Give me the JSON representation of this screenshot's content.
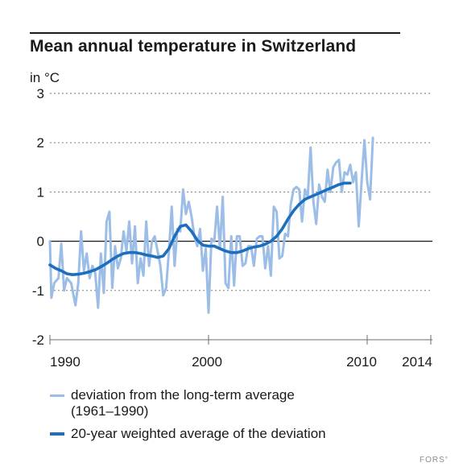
{
  "chart_data": {
    "type": "line",
    "title": "Mean annual temperature in Switzerland",
    "ylabel": "in °C",
    "ylim": [
      -2,
      3
    ],
    "xlim": [
      1988,
      2015
    ],
    "y_ticks": [
      3,
      2,
      1,
      0,
      -1,
      -2
    ],
    "y_tick_labels": [
      "3",
      "2",
      "1",
      "0",
      "-1",
      "-2"
    ],
    "x_ticks": [
      1990,
      2000,
      2010,
      2014
    ],
    "x_tick_labels": [
      "1990",
      "2000",
      "2010",
      "2014"
    ],
    "grid": true,
    "legend_position": "bottom",
    "series": [
      {
        "name": "deviation from the long-term average (1961–1990)",
        "color": "#9bbde6",
        "points": [
          [
            1988.0,
            0.0
          ],
          [
            1988.1,
            -1.15
          ],
          [
            1988.3,
            -0.85
          ],
          [
            1988.6,
            -0.75
          ],
          [
            1988.8,
            -0.05
          ],
          [
            1989.0,
            -1.0
          ],
          [
            1989.2,
            -0.75
          ],
          [
            1989.5,
            -0.85
          ],
          [
            1989.8,
            -1.3
          ],
          [
            1990.0,
            -0.85
          ],
          [
            1990.2,
            0.2
          ],
          [
            1990.4,
            -0.6
          ],
          [
            1990.6,
            -0.25
          ],
          [
            1990.8,
            -0.75
          ],
          [
            1991.0,
            -0.5
          ],
          [
            1991.2,
            -0.65
          ],
          [
            1991.4,
            -1.35
          ],
          [
            1991.6,
            -0.25
          ],
          [
            1991.8,
            -1.05
          ],
          [
            1992.0,
            0.4
          ],
          [
            1992.2,
            0.6
          ],
          [
            1992.4,
            -0.95
          ],
          [
            1992.6,
            -0.1
          ],
          [
            1992.8,
            -0.55
          ],
          [
            1993.0,
            -0.35
          ],
          [
            1993.2,
            0.2
          ],
          [
            1993.4,
            -0.2
          ],
          [
            1993.6,
            0.4
          ],
          [
            1993.8,
            -0.45
          ],
          [
            1994.0,
            0.3
          ],
          [
            1994.2,
            -0.85
          ],
          [
            1994.4,
            -0.35
          ],
          [
            1994.6,
            -0.7
          ],
          [
            1994.8,
            0.4
          ],
          [
            1995.0,
            -0.5
          ],
          [
            1995.2,
            0.0
          ],
          [
            1995.4,
            0.1
          ],
          [
            1995.6,
            -0.2
          ],
          [
            1995.8,
            -0.5
          ],
          [
            1996.0,
            -1.1
          ],
          [
            1996.2,
            -0.95
          ],
          [
            1996.4,
            -0.2
          ],
          [
            1996.6,
            0.7
          ],
          [
            1996.8,
            -0.5
          ],
          [
            1997.0,
            0.25
          ],
          [
            1997.2,
            0.2
          ],
          [
            1997.4,
            1.05
          ],
          [
            1997.6,
            0.55
          ],
          [
            1997.8,
            0.8
          ],
          [
            1998.0,
            0.5
          ],
          [
            1998.2,
            0.1
          ],
          [
            1998.4,
            -0.1
          ],
          [
            1998.6,
            0.25
          ],
          [
            1998.8,
            -0.6
          ],
          [
            1999.0,
            -0.15
          ],
          [
            1999.2,
            -1.45
          ],
          [
            1999.4,
            0.05
          ],
          [
            1999.6,
            0.0
          ],
          [
            1999.8,
            0.7
          ],
          [
            2000.0,
            -0.15
          ],
          [
            2000.2,
            0.9
          ],
          [
            2000.4,
            -0.85
          ],
          [
            2000.6,
            -0.95
          ],
          [
            2000.8,
            0.1
          ],
          [
            2001.0,
            -0.9
          ],
          [
            2001.2,
            0.1
          ],
          [
            2001.4,
            0.1
          ],
          [
            2001.6,
            -0.5
          ],
          [
            2001.8,
            -0.45
          ],
          [
            2002.0,
            -0.1
          ],
          [
            2002.2,
            -0.1
          ],
          [
            2002.4,
            -0.5
          ],
          [
            2002.6,
            0.05
          ],
          [
            2002.8,
            0.1
          ],
          [
            2003.0,
            0.1
          ],
          [
            2003.2,
            -0.55
          ],
          [
            2003.4,
            -0.1
          ],
          [
            2003.6,
            -0.7
          ],
          [
            2003.8,
            0.7
          ],
          [
            2004.0,
            0.6
          ],
          [
            2004.2,
            -0.35
          ],
          [
            2004.4,
            -0.3
          ],
          [
            2004.6,
            0.15
          ],
          [
            2004.8,
            0.1
          ],
          [
            2005.0,
            0.75
          ],
          [
            2005.2,
            1.05
          ],
          [
            2005.4,
            1.1
          ],
          [
            2005.6,
            1.05
          ],
          [
            2005.8,
            0.4
          ],
          [
            2006.0,
            1.05
          ],
          [
            2006.2,
            0.9
          ],
          [
            2006.4,
            1.9
          ],
          [
            2006.6,
            0.8
          ],
          [
            2006.8,
            0.35
          ],
          [
            2007.0,
            1.15
          ],
          [
            2007.2,
            0.9
          ],
          [
            2007.4,
            0.8
          ],
          [
            2007.6,
            1.45
          ],
          [
            2007.8,
            1.0
          ],
          [
            2008.0,
            1.5
          ],
          [
            2008.2,
            1.6
          ],
          [
            2008.4,
            1.65
          ],
          [
            2008.6,
            1.0
          ],
          [
            2008.8,
            1.4
          ],
          [
            2009.0,
            1.35
          ],
          [
            2009.2,
            1.55
          ],
          [
            2009.4,
            1.2
          ],
          [
            2009.6,
            1.4
          ],
          [
            2009.8,
            0.3
          ],
          [
            2010.0,
            1.2
          ],
          [
            2010.2,
            2.05
          ],
          [
            2010.4,
            1.2
          ],
          [
            2010.6,
            0.85
          ],
          [
            2010.8,
            2.1
          ]
        ]
      },
      {
        "name": "20-year weighted average of the deviation",
        "color": "#1d6fbe",
        "points": [
          [
            1988.0,
            -0.48
          ],
          [
            1988.4,
            -0.55
          ],
          [
            1988.8,
            -0.6
          ],
          [
            1989.2,
            -0.66
          ],
          [
            1989.6,
            -0.68
          ],
          [
            1990.0,
            -0.67
          ],
          [
            1990.4,
            -0.65
          ],
          [
            1990.8,
            -0.62
          ],
          [
            1991.2,
            -0.58
          ],
          [
            1991.6,
            -0.52
          ],
          [
            1992.0,
            -0.45
          ],
          [
            1992.4,
            -0.37
          ],
          [
            1992.8,
            -0.3
          ],
          [
            1993.2,
            -0.25
          ],
          [
            1993.6,
            -0.23
          ],
          [
            1994.0,
            -0.23
          ],
          [
            1994.4,
            -0.25
          ],
          [
            1994.8,
            -0.28
          ],
          [
            1995.2,
            -0.3
          ],
          [
            1995.6,
            -0.33
          ],
          [
            1996.0,
            -0.3
          ],
          [
            1996.4,
            -0.15
          ],
          [
            1996.8,
            0.1
          ],
          [
            1997.2,
            0.3
          ],
          [
            1997.6,
            0.33
          ],
          [
            1998.0,
            0.2
          ],
          [
            1998.4,
            0.02
          ],
          [
            1998.8,
            -0.08
          ],
          [
            1999.2,
            -0.1
          ],
          [
            1999.6,
            -0.1
          ],
          [
            2000.0,
            -0.15
          ],
          [
            2000.4,
            -0.2
          ],
          [
            2000.8,
            -0.23
          ],
          [
            2001.2,
            -0.23
          ],
          [
            2001.6,
            -0.2
          ],
          [
            2002.0,
            -0.15
          ],
          [
            2002.4,
            -0.12
          ],
          [
            2002.8,
            -0.1
          ],
          [
            2003.2,
            -0.06
          ],
          [
            2003.6,
            0.0
          ],
          [
            2004.0,
            0.1
          ],
          [
            2004.4,
            0.25
          ],
          [
            2004.8,
            0.45
          ],
          [
            2005.2,
            0.62
          ],
          [
            2005.6,
            0.75
          ],
          [
            2006.0,
            0.85
          ],
          [
            2006.4,
            0.9
          ],
          [
            2006.8,
            0.95
          ],
          [
            2007.2,
            1.0
          ],
          [
            2007.6,
            1.05
          ],
          [
            2008.0,
            1.1
          ],
          [
            2008.4,
            1.15
          ],
          [
            2008.8,
            1.18
          ],
          [
            2009.2,
            1.18
          ]
        ]
      }
    ]
  },
  "legend": {
    "items": [
      {
        "line1": "deviation from the long-term average",
        "line2": "(1961–1990)",
        "color": "#9bbde6"
      },
      {
        "line1": "20-year weighted average of the deviation",
        "color": "#1d6fbe"
      }
    ]
  },
  "footer": {
    "text": "FORS",
    "dot": "°"
  }
}
